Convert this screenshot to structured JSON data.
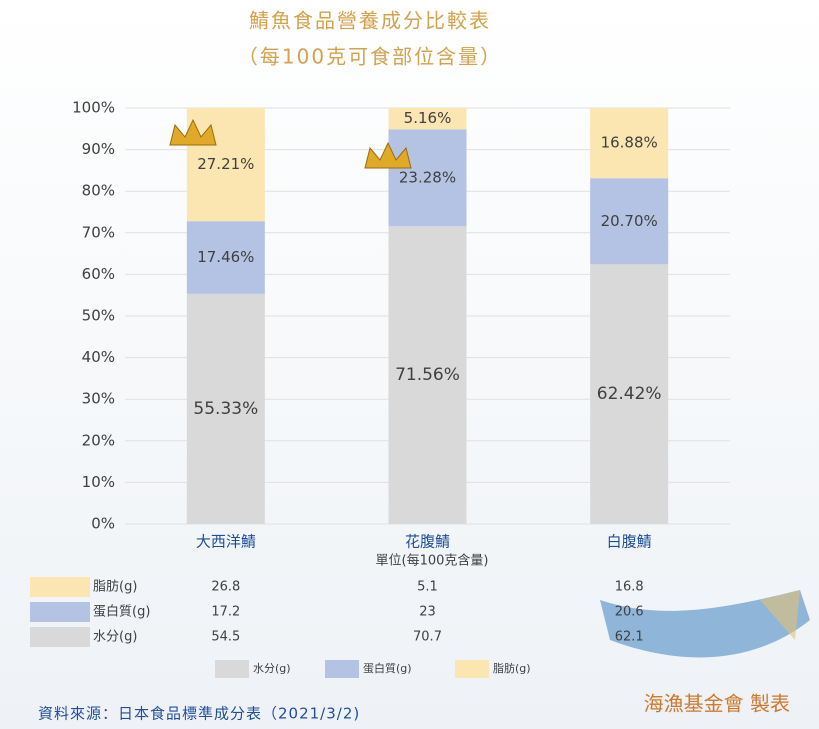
{
  "chart_data": {
    "type": "stacked_bar",
    "title": "鯖魚食品營養成分比較表",
    "subtitle": "（每100克可食部位含量）",
    "categories": [
      "大西洋鯖",
      "花腹鯖",
      "白腹鯖"
    ],
    "series": [
      {
        "name": "水分(g)",
        "color": "#d9d9d9",
        "values": [
          55.33,
          71.56,
          62.42
        ],
        "value_labels": [
          "55.33%",
          "71.56%",
          "62.42%"
        ]
      },
      {
        "name": "蛋白質(g)",
        "color": "#b4c3e3",
        "values": [
          17.46,
          23.28,
          20.7
        ],
        "value_labels": [
          "17.46%",
          "23.28%",
          "20.70%"
        ]
      },
      {
        "name": "脂肪(g)",
        "color": "#fbe6b1",
        "values": [
          27.21,
          5.16,
          16.88
        ],
        "value_labels": [
          "27.21%",
          "5.16%",
          "16.88%"
        ]
      }
    ],
    "ylim": [
      0,
      100
    ],
    "yticks": [
      {
        "value": 0,
        "label": "0%"
      },
      {
        "value": 10,
        "label": "10%"
      },
      {
        "value": 20,
        "label": "20%"
      },
      {
        "value": 30,
        "label": "30%"
      },
      {
        "value": 40,
        "label": "40%"
      },
      {
        "value": 50,
        "label": "50%"
      },
      {
        "value": 60,
        "label": "60%"
      },
      {
        "value": 70,
        "label": "70%"
      },
      {
        "value": 80,
        "label": "80%"
      },
      {
        "value": 90,
        "label": "90%"
      },
      {
        "value": 100,
        "label": "100%"
      }
    ],
    "grid": true,
    "data_table": {
      "unit_note": "單位(每100克含量)",
      "rows": [
        {
          "label": "脂肪(g)",
          "color": "#fbe6b1",
          "values": [
            26.8,
            5.1,
            16.8
          ]
        },
        {
          "label": "蛋白質(g)",
          "color": "#b4c3e3",
          "values": [
            17.2,
            23,
            20.6
          ]
        },
        {
          "label": "水分(g)",
          "color": "#d9d9d9",
          "values": [
            54.5,
            70.7,
            62.1
          ]
        }
      ]
    },
    "source": "資料來源：日本食品標準成分表（2021/3/2)",
    "credit": "海漁基金會 製表"
  }
}
